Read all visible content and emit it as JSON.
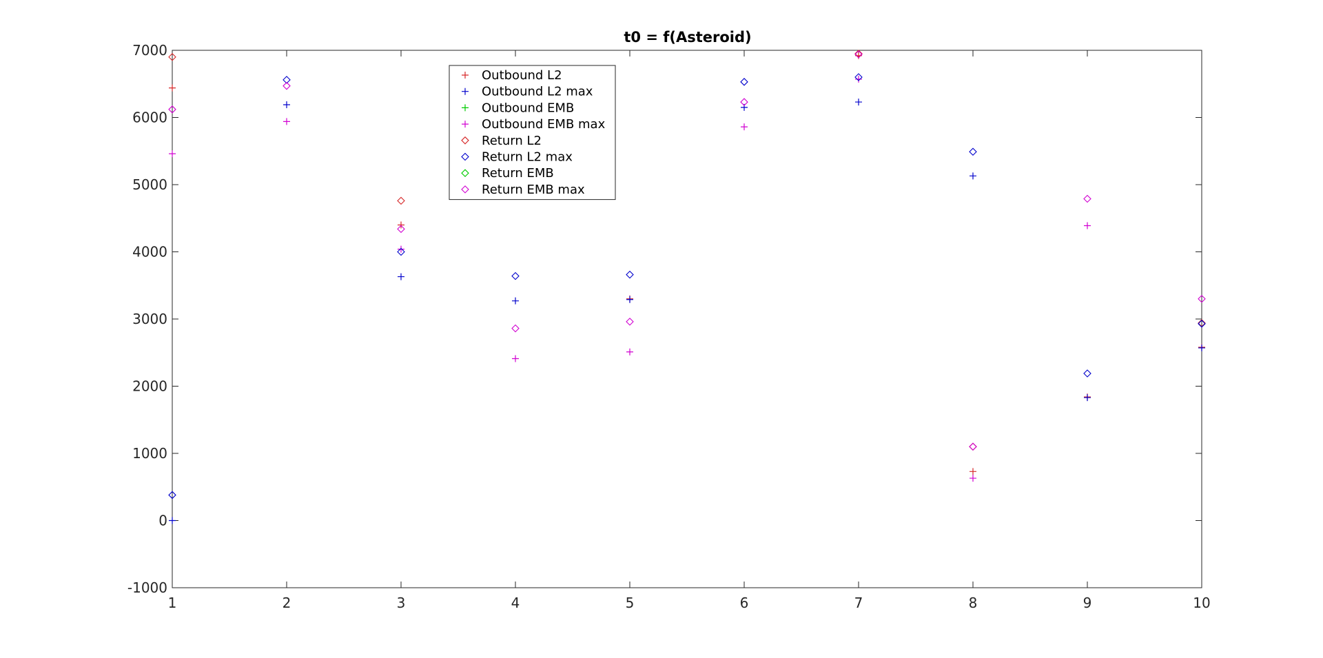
{
  "chart_data": {
    "type": "scatter",
    "title": "t0 = f(Asteroid)",
    "xlabel": "",
    "ylabel": "",
    "xlim": [
      1,
      10
    ],
    "ylim": [
      -1000,
      7000
    ],
    "xticks": [
      1,
      2,
      3,
      4,
      5,
      6,
      7,
      8,
      9,
      10
    ],
    "yticks": [
      -1000,
      0,
      1000,
      2000,
      3000,
      4000,
      5000,
      6000,
      7000
    ],
    "grid": false,
    "legend_position": "top-center",
    "series": [
      {
        "name": "Outbound L2",
        "color": "#d62728",
        "marker": "plus",
        "points": [
          [
            1,
            6440
          ],
          [
            3,
            4400
          ],
          [
            5,
            3300
          ],
          [
            7,
            6920
          ],
          [
            8,
            730
          ],
          [
            9,
            1840
          ],
          [
            10,
            2580
          ]
        ]
      },
      {
        "name": "Outbound L2 max",
        "color": "#0000cc",
        "marker": "plus",
        "points": [
          [
            1,
            0
          ],
          [
            2,
            6190
          ],
          [
            3,
            3630
          ],
          [
            4,
            3270
          ],
          [
            5,
            3290
          ],
          [
            6,
            6150
          ],
          [
            7,
            6230
          ],
          [
            8,
            5130
          ],
          [
            9,
            1830
          ],
          [
            10,
            2570
          ]
        ]
      },
      {
        "name": "Outbound EMB",
        "color": "#00cc00",
        "marker": "plus",
        "points": []
      },
      {
        "name": "Outbound EMB max",
        "color": "#d100d1",
        "marker": "plus",
        "points": [
          [
            1,
            5460
          ],
          [
            2,
            5940
          ],
          [
            3,
            4040
          ],
          [
            4,
            2410
          ],
          [
            5,
            2510
          ],
          [
            6,
            5860
          ],
          [
            7,
            6570
          ],
          [
            8,
            630
          ],
          [
            9,
            4390
          ]
        ]
      },
      {
        "name": "Return L2",
        "color": "#d62728",
        "marker": "diamond",
        "points": [
          [
            1,
            6900
          ],
          [
            3,
            4760
          ],
          [
            7,
            6950
          ],
          [
            8,
            1100
          ],
          [
            10,
            2940
          ]
        ]
      },
      {
        "name": "Return L2 max",
        "color": "#0000cc",
        "marker": "diamond",
        "points": [
          [
            1,
            380
          ],
          [
            2,
            6560
          ],
          [
            3,
            4000
          ],
          [
            4,
            3640
          ],
          [
            5,
            3660
          ],
          [
            6,
            6530
          ],
          [
            7,
            6600
          ],
          [
            8,
            5490
          ],
          [
            9,
            2190
          ],
          [
            10,
            2930
          ]
        ]
      },
      {
        "name": "Return EMB",
        "color": "#00cc00",
        "marker": "diamond",
        "points": []
      },
      {
        "name": "Return EMB max",
        "color": "#d100d1",
        "marker": "diamond",
        "points": [
          [
            1,
            6120
          ],
          [
            2,
            6470
          ],
          [
            3,
            4340
          ],
          [
            4,
            2860
          ],
          [
            5,
            2960
          ],
          [
            6,
            6230
          ],
          [
            7,
            6940
          ],
          [
            8,
            1100
          ],
          [
            9,
            4790
          ],
          [
            10,
            3300
          ]
        ]
      }
    ]
  }
}
